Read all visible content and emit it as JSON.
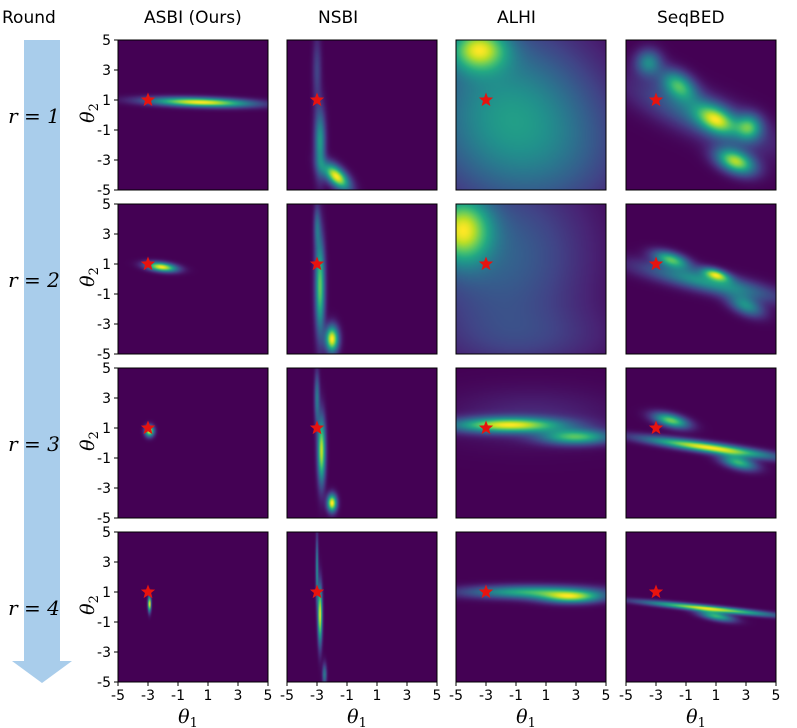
{
  "header": {
    "round_label": "Round",
    "columns": [
      "ASBI (Ours)",
      "NSBI",
      "ALHI",
      "SeqBED"
    ]
  },
  "round_labels": [
    "r = 1",
    "r = 2",
    "r = 3",
    "r = 4"
  ],
  "colors": {
    "arrow": "#a9cdeb",
    "star": "#e8130f",
    "bg": "#440154"
  },
  "chart_data": {
    "type": "heatmap",
    "title": "",
    "xlabel": "θ1",
    "ylabel": "θ2",
    "xlim": [
      -5,
      5
    ],
    "ylim": [
      -5,
      5
    ],
    "xticks": [
      -5,
      -3,
      -1,
      1,
      3,
      5
    ],
    "yticks": [
      5,
      3,
      1,
      -1,
      -3,
      -5
    ],
    "xtick_labels": [
      "-5",
      "-3",
      "-1",
      "1",
      "3",
      "5"
    ],
    "ytick_labels": [
      "5",
      "3",
      "1",
      "-1",
      "-3",
      "-5"
    ],
    "true_parameter": {
      "theta1": -3,
      "theta2": 1
    },
    "colormap": "viridis",
    "methods": [
      "ASBI (Ours)",
      "NSBI",
      "ALHI",
      "SeqBED"
    ],
    "rounds": [
      1,
      2,
      3,
      4
    ],
    "posteriors": [
      [
        [
          {
            "mx": 0.5,
            "my": 0.85,
            "sx": 2.3,
            "sy": 0.22,
            "rho": -0.3,
            "w": 1.0
          }
        ],
        [
          {
            "mx": -1.7,
            "my": -4.1,
            "sx": 0.6,
            "sy": 0.6,
            "rho": -0.6,
            "w": 1.0
          },
          {
            "mx": -2.8,
            "my": -1.8,
            "sx": 0.25,
            "sy": 1.5,
            "rho": 0.0,
            "w": 0.55
          },
          {
            "mx": -3.0,
            "my": 3.0,
            "sx": 0.2,
            "sy": 1.6,
            "rho": 0.0,
            "w": 0.2
          }
        ],
        [
          {
            "mx": -3.5,
            "my": 4.4,
            "sx": 1.3,
            "sy": 1.0,
            "rho": 0.0,
            "w": 0.7
          },
          {
            "mx": -2.0,
            "my": 0.5,
            "sx": 4.0,
            "sy": 4.0,
            "rho": 0.0,
            "w": 0.42
          },
          {
            "mx": 1.5,
            "my": -2.5,
            "sx": 4.0,
            "sy": 3.5,
            "rho": 0.0,
            "w": 0.2
          }
        ],
        [
          {
            "mx": 2.3,
            "my": -3.1,
            "sx": 0.9,
            "sy": 0.6,
            "rho": -0.4,
            "w": 0.85
          },
          {
            "mx": -1.5,
            "my": 2.0,
            "sx": 0.8,
            "sy": 0.7,
            "rho": -0.4,
            "w": 0.6
          },
          {
            "mx": 1.0,
            "my": -0.3,
            "sx": 0.9,
            "sy": 0.7,
            "rho": -0.4,
            "w": 0.65
          },
          {
            "mx": 3.2,
            "my": -0.8,
            "sx": 0.6,
            "sy": 0.6,
            "rho": 0.0,
            "w": 0.55
          },
          {
            "mx": -3.5,
            "my": 3.5,
            "sx": 0.6,
            "sy": 0.6,
            "rho": 0.0,
            "w": 0.45
          },
          {
            "mx": 0.0,
            "my": 0.0,
            "sx": 3.0,
            "sy": 1.5,
            "rho": -0.75,
            "w": 0.35
          }
        ]
      ],
      [
        [
          {
            "mx": -2.1,
            "my": 0.8,
            "sx": 0.7,
            "sy": 0.22,
            "rho": -0.35,
            "w": 1.0
          }
        ],
        [
          {
            "mx": -2.0,
            "my": -4.0,
            "sx": 0.3,
            "sy": 0.6,
            "rho": 0.0,
            "w": 1.0
          },
          {
            "mx": -2.8,
            "my": -0.5,
            "sx": 0.22,
            "sy": 2.2,
            "rho": 0.0,
            "w": 0.75
          },
          {
            "mx": -3.0,
            "my": 3.5,
            "sx": 0.15,
            "sy": 1.0,
            "rho": 0.0,
            "w": 0.3
          }
        ],
        [
          {
            "mx": -4.6,
            "my": 3.3,
            "sx": 1.3,
            "sy": 1.5,
            "rho": 0.0,
            "w": 1.0
          },
          {
            "mx": -2.0,
            "my": 1.5,
            "sx": 4.0,
            "sy": 4.0,
            "rho": 0.0,
            "w": 0.4
          },
          {
            "mx": 0.0,
            "my": -4.0,
            "sx": 4.0,
            "sy": 1.5,
            "rho": 0.0,
            "w": 0.15
          }
        ],
        [
          {
            "mx": 0.5,
            "my": -0.2,
            "sx": 3.0,
            "sy": 0.8,
            "rho": -0.8,
            "w": 0.5
          },
          {
            "mx": -2.0,
            "my": 1.3,
            "sx": 0.8,
            "sy": 0.4,
            "rho": -0.5,
            "w": 0.65
          },
          {
            "mx": 1.0,
            "my": 0.3,
            "sx": 0.6,
            "sy": 0.3,
            "rho": -0.5,
            "w": 0.7
          },
          {
            "mx": 3.0,
            "my": -1.8,
            "sx": 0.8,
            "sy": 0.5,
            "rho": -0.5,
            "w": 0.45
          }
        ]
      ],
      [
        [
          {
            "mx": -2.9,
            "my": 0.8,
            "sx": 0.2,
            "sy": 0.25,
            "rho": 0.0,
            "w": 1.0
          }
        ],
        [
          {
            "mx": -2.0,
            "my": -4.0,
            "sx": 0.22,
            "sy": 0.4,
            "rho": 0.0,
            "w": 0.9
          },
          {
            "mx": -2.7,
            "my": -0.5,
            "sx": 0.18,
            "sy": 1.5,
            "rho": 0.0,
            "w": 0.8
          },
          {
            "mx": -3.0,
            "my": 3.0,
            "sx": 0.12,
            "sy": 1.2,
            "rho": 0.0,
            "w": 0.35
          }
        ],
        [
          {
            "mx": -1.5,
            "my": 1.2,
            "sx": 2.5,
            "sy": 0.35,
            "rho": 0.0,
            "w": 1.0
          },
          {
            "mx": 3.0,
            "my": 0.4,
            "sx": 1.6,
            "sy": 0.35,
            "rho": 0.0,
            "w": 0.75
          },
          {
            "mx": 0.0,
            "my": 1.8,
            "sx": 4.0,
            "sy": 1.3,
            "rho": 0.0,
            "w": 0.12
          }
        ],
        [
          {
            "mx": 0.5,
            "my": -0.3,
            "sx": 2.8,
            "sy": 0.45,
            "rho": -0.85,
            "w": 0.9
          },
          {
            "mx": -2.0,
            "my": 1.5,
            "sx": 0.8,
            "sy": 0.35,
            "rho": -0.5,
            "w": 0.7
          },
          {
            "mx": 2.5,
            "my": -1.3,
            "sx": 0.8,
            "sy": 0.35,
            "rho": -0.5,
            "w": 0.6
          }
        ]
      ],
      [
        [
          {
            "mx": -2.9,
            "my": 0.2,
            "sx": 0.07,
            "sy": 0.35,
            "rho": 0.0,
            "w": 0.55
          }
        ],
        [
          {
            "mx": -2.8,
            "my": -0.5,
            "sx": 0.1,
            "sy": 1.3,
            "rho": 0.0,
            "w": 1.0
          },
          {
            "mx": -3.0,
            "my": 2.5,
            "sx": 0.06,
            "sy": 1.5,
            "rho": 0.0,
            "w": 0.5
          },
          {
            "mx": -2.5,
            "my": -4.5,
            "sx": 0.1,
            "sy": 0.5,
            "rho": 0.0,
            "w": 0.4
          }
        ],
        [
          {
            "mx": 0.0,
            "my": 1.0,
            "sx": 3.0,
            "sy": 0.3,
            "rho": 0.0,
            "w": 0.85
          },
          {
            "mx": 2.7,
            "my": 0.65,
            "sx": 1.4,
            "sy": 0.28,
            "rho": 0.0,
            "w": 1.0
          }
        ],
        [
          {
            "mx": 0.5,
            "my": -0.1,
            "sx": 2.9,
            "sy": 0.32,
            "rho": -0.9,
            "w": 0.85
          },
          {
            "mx": 1.0,
            "my": -0.6,
            "sx": 0.8,
            "sy": 0.25,
            "rho": -0.6,
            "w": 0.6
          }
        ]
      ]
    ]
  }
}
